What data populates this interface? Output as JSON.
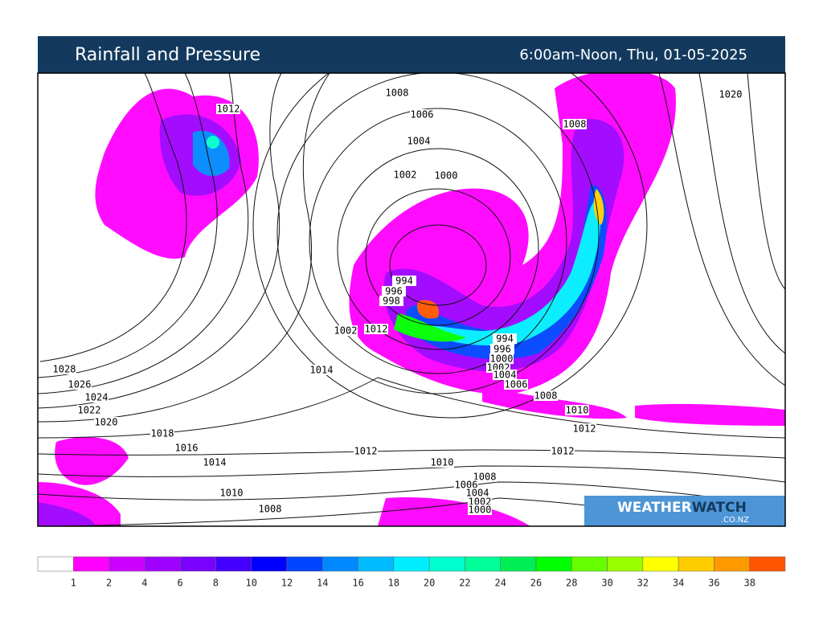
{
  "header": {
    "title": "Rainfall and Pressure",
    "time": "6:00am-Noon, Thu, 01-05-2025"
  },
  "isobar_labels": [
    "1012",
    "1008",
    "1006",
    "1004",
    "1002",
    "1000",
    "1008",
    "1020",
    "994",
    "996",
    "998",
    "1002",
    "1012",
    "1014",
    "994",
    "996",
    "1000",
    "1002",
    "1004",
    "1006",
    "1008",
    "1010",
    "1012",
    "1028",
    "1026",
    "1024",
    "1022",
    "1020",
    "1018",
    "1016",
    "1014",
    "1012",
    "1012",
    "1010",
    "1008",
    "1006",
    "1004",
    "1002",
    "1000",
    "1010",
    "1008"
  ],
  "logo": {
    "brand_a": "WEATHER",
    "brand_b": "WATCH",
    "domain": ".CO.NZ"
  },
  "colorbar": {
    "labels": [
      "1",
      "2",
      "4",
      "6",
      "8",
      "10",
      "12",
      "14",
      "16",
      "18",
      "20",
      "22",
      "24",
      "26",
      "28",
      "30",
      "32",
      "34",
      "36",
      "38"
    ],
    "colors": [
      "#ffffff",
      "#ff00ff",
      "#cc00ff",
      "#a000ff",
      "#7a00ff",
      "#4400ff",
      "#0000ff",
      "#0044ff",
      "#0088ff",
      "#00bbff",
      "#00eeff",
      "#00ffcc",
      "#00ff99",
      "#00ee55",
      "#00ff00",
      "#66ff00",
      "#99ff00",
      "#ffff00",
      "#ffcc00",
      "#ff9900",
      "#ff5500"
    ]
  }
}
